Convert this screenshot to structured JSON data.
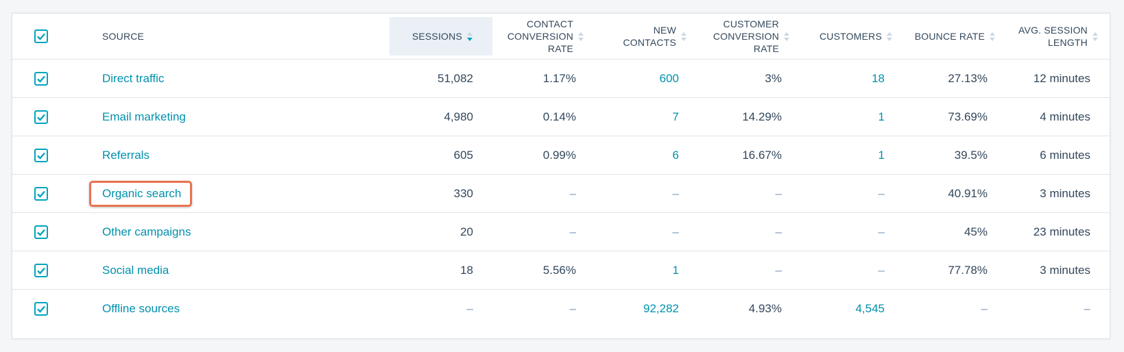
{
  "colors": {
    "accent": "#00a4bd",
    "link": "#0091ae",
    "text": "#33475b",
    "highlight_border": "#e8734f",
    "sorted_header_bg": "#eaf0f6"
  },
  "headers": {
    "source": "SOURCE",
    "sessions": "SESSIONS",
    "contact_conversion_rate_l1": "CONTACT",
    "contact_conversion_rate_l2": "CONVERSION",
    "contact_conversion_rate_l3": "RATE",
    "new_contacts_l1": "NEW",
    "new_contacts_l2": "CONTACTS",
    "customer_conversion_rate_l1": "CUSTOMER",
    "customer_conversion_rate_l2": "CONVERSION",
    "customer_conversion_rate_l3": "RATE",
    "customers": "CUSTOMERS",
    "bounce_rate": "BOUNCE RATE",
    "avg_session_length_l1": "AVG. SESSION",
    "avg_session_length_l2": "LENGTH"
  },
  "sorted_column": "sessions",
  "sort_direction": "descending",
  "rows": [
    {
      "checked": true,
      "source": "Direct traffic",
      "sessions": "51,082",
      "contact_conversion_rate": "1.17%",
      "new_contacts": "600",
      "customer_conversion_rate": "3%",
      "customers": "18",
      "bounce_rate": "27.13%",
      "avg_session_length": "12 minutes"
    },
    {
      "checked": true,
      "source": "Email marketing",
      "sessions": "4,980",
      "contact_conversion_rate": "0.14%",
      "new_contacts": "7",
      "customer_conversion_rate": "14.29%",
      "customers": "1",
      "bounce_rate": "73.69%",
      "avg_session_length": "4 minutes"
    },
    {
      "checked": true,
      "source": "Referrals",
      "sessions": "605",
      "contact_conversion_rate": "0.99%",
      "new_contacts": "6",
      "customer_conversion_rate": "16.67%",
      "customers": "1",
      "bounce_rate": "39.5%",
      "avg_session_length": "6 minutes"
    },
    {
      "checked": true,
      "source": "Organic search",
      "highlighted": true,
      "sessions": "330",
      "contact_conversion_rate": "–",
      "new_contacts": "–",
      "customer_conversion_rate": "–",
      "customers": "–",
      "bounce_rate": "40.91%",
      "avg_session_length": "3 minutes"
    },
    {
      "checked": true,
      "source": "Other campaigns",
      "sessions": "20",
      "contact_conversion_rate": "–",
      "new_contacts": "–",
      "customer_conversion_rate": "–",
      "customers": "–",
      "bounce_rate": "45%",
      "avg_session_length": "23 minutes"
    },
    {
      "checked": true,
      "source": "Social media",
      "sessions": "18",
      "contact_conversion_rate": "5.56%",
      "new_contacts": "1",
      "customer_conversion_rate": "–",
      "customers": "–",
      "bounce_rate": "77.78%",
      "avg_session_length": "3 minutes"
    },
    {
      "checked": true,
      "source": "Offline sources",
      "sessions": "–",
      "contact_conversion_rate": "–",
      "new_contacts": "92,282",
      "customer_conversion_rate": "4.93%",
      "customers": "4,545",
      "bounce_rate": "–",
      "avg_session_length": "–"
    }
  ]
}
